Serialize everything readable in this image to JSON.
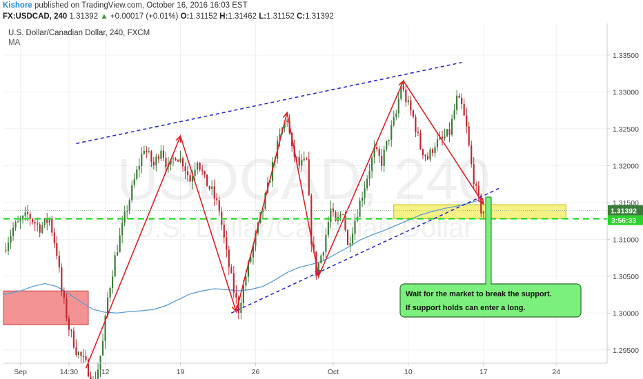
{
  "header": {
    "author": "Kishore",
    "published": "published on TradingView.com, October 16, 2016 16:03 EST",
    "symbol": "FX:USDCAD, 240",
    "last": "1.31392",
    "arrow": "▲",
    "change": "+0.00017 (+0.01%)",
    "open_label": "O:",
    "open": "1.31152",
    "high_label": "H:",
    "high": "1.31462",
    "low_label": "L:",
    "low": "1.31152",
    "close_label": "C:",
    "close": "1.31392"
  },
  "legend": {
    "title": "U.S. Dollar/Canadian Dollar, 240, FXCM",
    "indicator": "MA"
  },
  "watermark": {
    "symbol": "USDCAD, 240",
    "name": "U.S. Dollar/Canadian Dollar"
  },
  "colors": {
    "up": "#3a7d3a",
    "down": "#c0262f",
    "ma": "#5b9bd5",
    "pattern": "#e02020",
    "channel": "#2a2ad0",
    "support": "#33dd33",
    "supply_zone": "#f28080",
    "current_zone": "#f5ef78",
    "note_bg": "#7cf07c",
    "last_price_bg": "#3a7d3a",
    "timer_bg": "#2bd12b"
  },
  "chart_data": {
    "type": "candlestick",
    "title": "U.S. Dollar/Canadian Dollar, 240, FXCM",
    "yticks": [
      "1.29500",
      "1.30000",
      "1.30500",
      "1.31000",
      "1.31500",
      "1.32000",
      "1.32500",
      "1.33000",
      "1.33500"
    ],
    "ytick_values": [
      1.295,
      1.3,
      1.305,
      1.31,
      1.315,
      1.32,
      1.325,
      1.33,
      1.335
    ],
    "ylim": [
      1.2932,
      1.3393
    ],
    "xticks": [
      {
        "label": "Sep",
        "index": 0
      },
      {
        "label": "14:30",
        "index": 20
      },
      {
        "label": "12",
        "index": 35
      },
      {
        "label": "19",
        "index": 66
      },
      {
        "label": "26",
        "index": 97
      },
      {
        "label": "Oct",
        "index": 129
      },
      {
        "label": "10",
        "index": 160
      },
      {
        "label": "17",
        "index": 191
      },
      {
        "label": "24",
        "index": 221
      }
    ],
    "index_range": [
      -7,
      242
    ],
    "waypoints": [
      [
        -7,
        1.3085
      ],
      [
        -3,
        1.3115
      ],
      [
        3,
        1.3133
      ],
      [
        8,
        1.3116
      ],
      [
        12,
        1.3128
      ],
      [
        15,
        1.3082
      ],
      [
        17,
        1.303
      ],
      [
        20,
        1.298
      ],
      [
        23,
        1.295
      ],
      [
        27,
        1.293
      ],
      [
        30,
        1.2905
      ],
      [
        32,
        1.2925
      ],
      [
        34,
        1.296
      ],
      [
        36,
        1.302
      ],
      [
        39,
        1.3075
      ],
      [
        43,
        1.313
      ],
      [
        47,
        1.318
      ],
      [
        51,
        1.3225
      ],
      [
        55,
        1.32
      ],
      [
        58,
        1.3225
      ],
      [
        61,
        1.3195
      ],
      [
        64,
        1.3215
      ],
      [
        67,
        1.3205
      ],
      [
        70,
        1.318
      ],
      [
        73,
        1.321
      ],
      [
        76,
        1.318
      ],
      [
        79,
        1.3165
      ],
      [
        82,
        1.314
      ],
      [
        85,
        1.308
      ],
      [
        88,
        1.303
      ],
      [
        90,
        1.3005
      ],
      [
        93,
        1.305
      ],
      [
        96,
        1.309
      ],
      [
        99,
        1.313
      ],
      [
        102,
        1.317
      ],
      [
        105,
        1.3215
      ],
      [
        108,
        1.325
      ],
      [
        110,
        1.3265
      ],
      [
        112,
        1.322
      ],
      [
        115,
        1.32
      ],
      [
        118,
        1.3205
      ],
      [
        120,
        1.31
      ],
      [
        122,
        1.3055
      ],
      [
        125,
        1.309
      ],
      [
        128,
        1.314
      ],
      [
        130,
        1.312
      ],
      [
        133,
        1.314
      ],
      [
        135,
        1.309
      ],
      [
        137,
        1.3115
      ],
      [
        140,
        1.315
      ],
      [
        143,
        1.3185
      ],
      [
        146,
        1.322
      ],
      [
        149,
        1.3205
      ],
      [
        152,
        1.324
      ],
      [
        155,
        1.327
      ],
      [
        157,
        1.331
      ],
      [
        159,
        1.329
      ],
      [
        162,
        1.3265
      ],
      [
        165,
        1.3225
      ],
      [
        168,
        1.321
      ],
      [
        171,
        1.323
      ],
      [
        174,
        1.3235
      ],
      [
        177,
        1.3245
      ],
      [
        180,
        1.329
      ],
      [
        182,
        1.328
      ],
      [
        184,
        1.325
      ],
      [
        186,
        1.32
      ],
      [
        188,
        1.3165
      ],
      [
        190,
        1.314
      ],
      [
        191,
        1.3139
      ]
    ],
    "ma_points": [
      [
        -7,
        1.3025
      ],
      [
        0,
        1.303
      ],
      [
        5,
        1.3036
      ],
      [
        10,
        1.304
      ],
      [
        15,
        1.3036
      ],
      [
        20,
        1.3026
      ],
      [
        25,
        1.3015
      ],
      [
        30,
        1.3005
      ],
      [
        35,
        1.3001
      ],
      [
        40,
        1.3
      ],
      [
        45,
        1.3002
      ],
      [
        50,
        1.3003
      ],
      [
        55,
        1.3005
      ],
      [
        60,
        1.301
      ],
      [
        65,
        1.3018
      ],
      [
        70,
        1.3026
      ],
      [
        75,
        1.303
      ],
      [
        80,
        1.3033
      ],
      [
        85,
        1.3032
      ],
      [
        90,
        1.303
      ],
      [
        95,
        1.3032
      ],
      [
        100,
        1.3036
      ],
      [
        105,
        1.3045
      ],
      [
        110,
        1.3055
      ],
      [
        115,
        1.3062
      ],
      [
        120,
        1.3066
      ],
      [
        125,
        1.3071
      ],
      [
        130,
        1.308
      ],
      [
        135,
        1.3089
      ],
      [
        140,
        1.3099
      ],
      [
        145,
        1.3106
      ],
      [
        150,
        1.3112
      ],
      [
        155,
        1.3119
      ],
      [
        160,
        1.3126
      ],
      [
        165,
        1.3133
      ],
      [
        170,
        1.3138
      ],
      [
        175,
        1.3142
      ],
      [
        180,
        1.3145
      ],
      [
        185,
        1.3149
      ],
      [
        188,
        1.3152
      ],
      [
        191,
        1.3155
      ]
    ],
    "zigzag": [
      [
        27,
        1.2925
      ],
      [
        66,
        1.324
      ],
      [
        89,
        1.3002
      ],
      [
        110,
        1.3272
      ],
      [
        123,
        1.305
      ],
      [
        158,
        1.3315
      ],
      [
        191,
        1.3148
      ]
    ],
    "channel_upper": [
      [
        23,
        1.323
      ],
      [
        182,
        1.334
      ]
    ],
    "channel_lower": [
      [
        87,
        1.3
      ],
      [
        198,
        1.317
      ]
    ],
    "support_level": 1.3128,
    "last_price_level": 1.3139,
    "supply_zone": {
      "x_from": -7,
      "x_to": 28,
      "y_from": 1.2984,
      "y_to": 1.303
    },
    "current_zone": {
      "x_from": 154,
      "x_to": 225,
      "y_from": 1.3128,
      "y_to": 1.3147
    },
    "last_price_label": "1.31392",
    "timer_label": "3:56:33",
    "annotation": [
      "Wait for the market to break the support.",
      "If support holds can enter a long."
    ]
  }
}
